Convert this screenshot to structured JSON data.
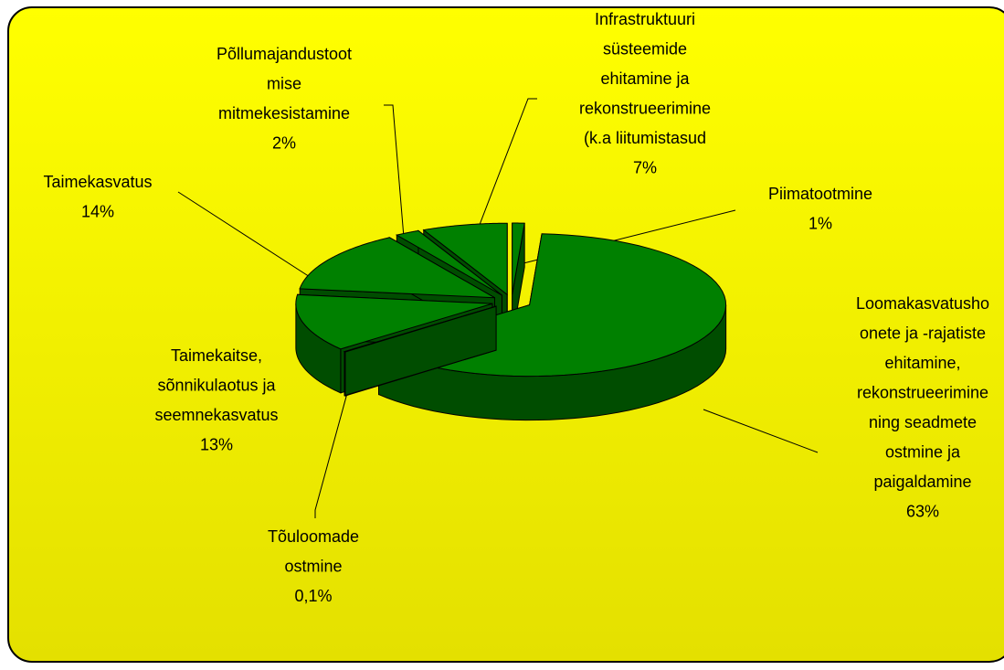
{
  "chart_data": {
    "type": "pie3d",
    "categories": [
      [
        "Piimatootmine"
      ],
      [
        "Loomakasvatusho",
        "onete ja -rajatiste",
        "ehitamine,",
        "rekonstrueerimine",
        "ning seadmete",
        "ostmine ja",
        "paigaldamine"
      ],
      [
        "Tõuloomade",
        "ostmine"
      ],
      [
        "Taimekaitse,",
        "sõnnikulaotus ja",
        "seemnekasvatus"
      ],
      [
        "Taimekasvatus"
      ],
      [
        "Põllumajandustoot",
        "mise",
        "mitmekesistamine"
      ],
      [
        "Infrastruktuuri",
        "süsteemide",
        "ehitamine ja",
        "rekonstrueerimine",
        "(k.a liitumistasud"
      ]
    ],
    "values": [
      1,
      63,
      0.1,
      13,
      14,
      2,
      7
    ],
    "value_labels": [
      "1%",
      "63%",
      "0,1%",
      "13%",
      "14%",
      "2%",
      "7%"
    ],
    "color": "#008000"
  }
}
